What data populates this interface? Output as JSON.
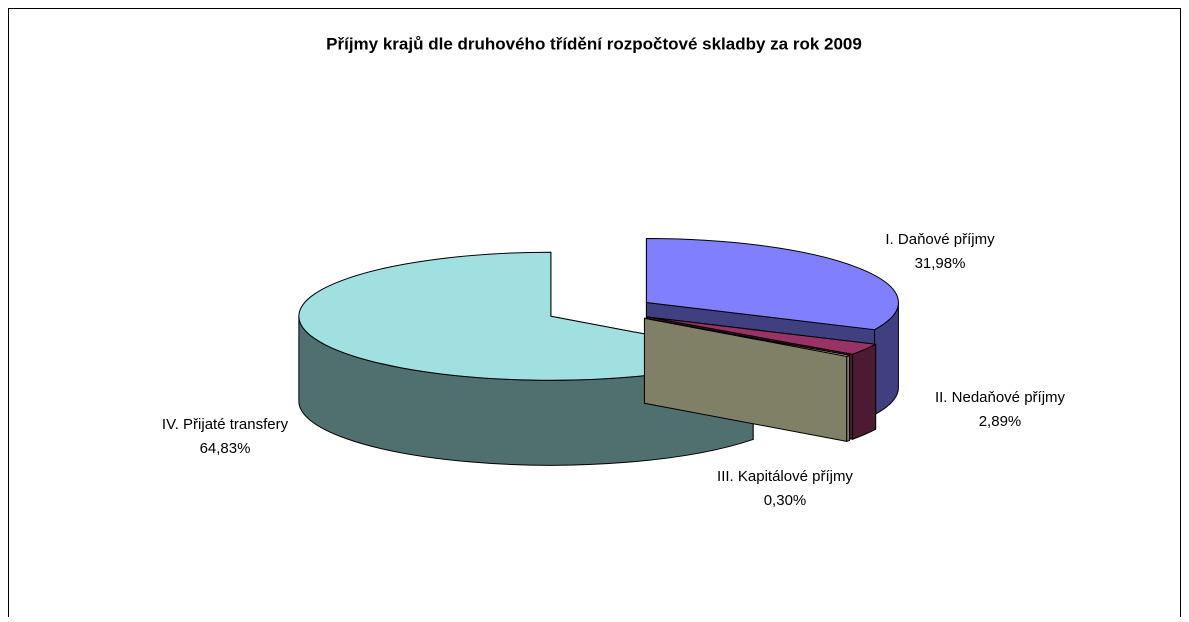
{
  "chart_data": {
    "type": "pie",
    "title": "Příjmy krajů dle druhového třídění rozpočtové skladby za rok 2009",
    "categories": [
      "I. Daňové příjmy",
      "II. Nedaňové příjmy",
      "III. Kapitálové příjmy",
      "IV. Přijaté transfery"
    ],
    "values": [
      31.98,
      2.89,
      0.3,
      64.83
    ],
    "value_labels": [
      "31,98%",
      "2,89%",
      "0,30%",
      "64,83%"
    ],
    "colors": [
      "#8080ff",
      "#993366",
      "#ffffcc",
      "#a0e0e0"
    ]
  }
}
